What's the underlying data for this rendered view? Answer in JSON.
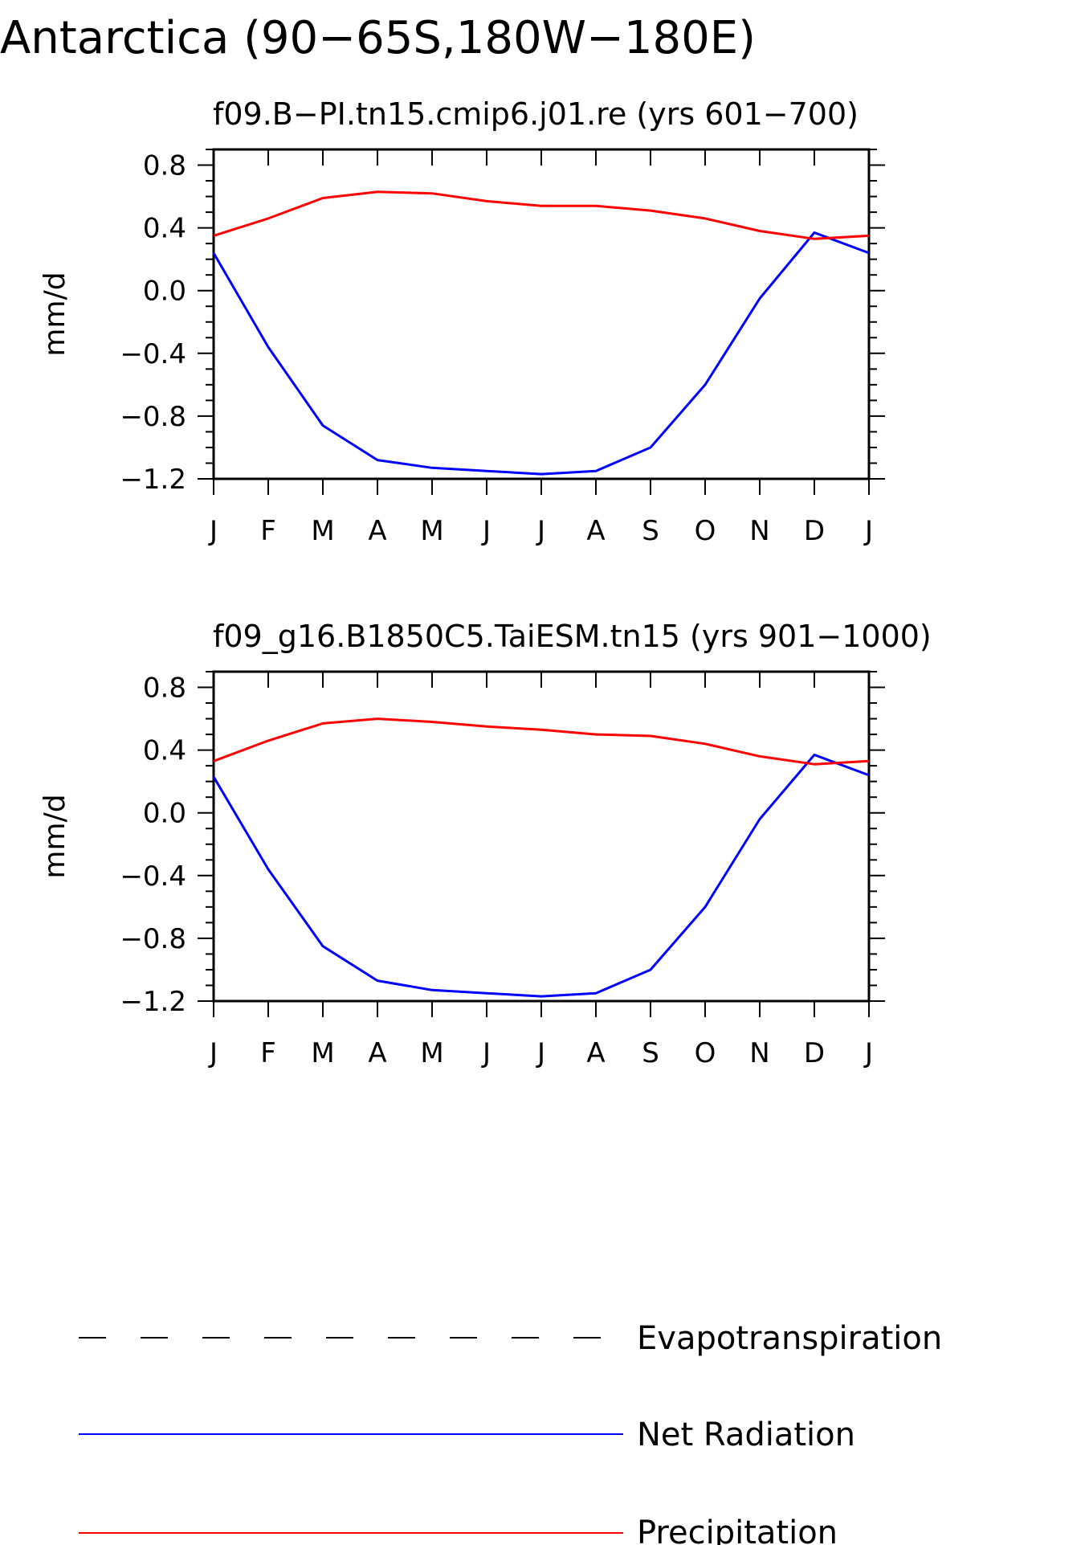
{
  "title": "Antarctica (90−65S,180W−180E)",
  "colors": {
    "net_radiation": "#0000ff",
    "precipitation": "#ff0000",
    "evapotranspiration": "#000000",
    "axes": "#000000",
    "background": "#ffffff"
  },
  "chart_data": [
    {
      "type": "line",
      "title": "f09.B−PI.tn15.cmip6.j01.re (yrs 601−700)",
      "xlabel": "",
      "ylabel": "mm/d",
      "categories": [
        "J",
        "F",
        "M",
        "A",
        "M",
        "J",
        "J",
        "A",
        "S",
        "O",
        "N",
        "D",
        "J"
      ],
      "ylim": [
        -1.2,
        0.9
      ],
      "yticks": [
        -1.2,
        -0.8,
        -0.4,
        0.0,
        0.4,
        0.8
      ],
      "ytick_labels": [
        "−1.2",
        "−0.8",
        "−0.4",
        "0.0",
        "0.4",
        "0.8"
      ],
      "grid": false,
      "legend": "below",
      "series": [
        {
          "name": "Net Radiation",
          "color_key": "net_radiation",
          "values": [
            0.24,
            -0.36,
            -0.86,
            -1.08,
            -1.13,
            -1.15,
            -1.17,
            -1.15,
            -1.0,
            -0.6,
            -0.05,
            0.37,
            0.24
          ]
        },
        {
          "name": "Precipitation",
          "color_key": "precipitation",
          "values": [
            0.35,
            0.46,
            0.59,
            0.63,
            0.62,
            0.57,
            0.54,
            0.54,
            0.51,
            0.46,
            0.38,
            0.33,
            0.35
          ]
        }
      ]
    },
    {
      "type": "line",
      "title": "f09_g16.B1850C5.TaiESM.tn15 (yrs 901−1000)",
      "xlabel": "",
      "ylabel": "mm/d",
      "categories": [
        "J",
        "F",
        "M",
        "A",
        "M",
        "J",
        "J",
        "A",
        "S",
        "O",
        "N",
        "D",
        "J"
      ],
      "ylim": [
        -1.2,
        0.9
      ],
      "yticks": [
        -1.2,
        -0.8,
        -0.4,
        0.0,
        0.4,
        0.8
      ],
      "ytick_labels": [
        "−1.2",
        "−0.8",
        "−0.4",
        "0.0",
        "0.4",
        "0.8"
      ],
      "grid": false,
      "legend": "below",
      "series": [
        {
          "name": "Net Radiation",
          "color_key": "net_radiation",
          "values": [
            0.23,
            -0.36,
            -0.85,
            -1.07,
            -1.13,
            -1.15,
            -1.17,
            -1.15,
            -1.0,
            -0.6,
            -0.04,
            0.37,
            0.24
          ]
        },
        {
          "name": "Precipitation",
          "color_key": "precipitation",
          "values": [
            0.33,
            0.46,
            0.57,
            0.6,
            0.58,
            0.55,
            0.53,
            0.5,
            0.49,
            0.44,
            0.36,
            0.31,
            0.33
          ]
        }
      ]
    }
  ],
  "legend": {
    "items": [
      {
        "label": "Evapotranspiration",
        "style": "dashed",
        "color_key": "evapotranspiration"
      },
      {
        "label": "Net Radiation",
        "style": "solid",
        "color_key": "net_radiation"
      },
      {
        "label": "Precipitation",
        "style": "solid",
        "color_key": "precipitation"
      }
    ]
  }
}
